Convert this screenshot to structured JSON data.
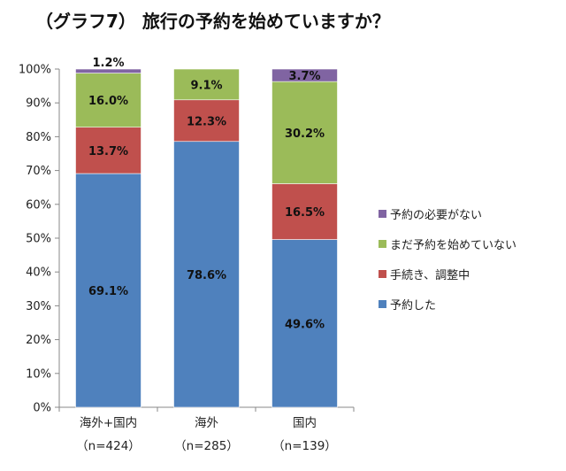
{
  "chart_data": {
    "type": "bar",
    "stacked": true,
    "title": "（グラフ7） 旅行の予約を始めていますか？",
    "categories": [
      {
        "name": "海外+国内",
        "n": "（n=424）"
      },
      {
        "name": "海外",
        "n": "（n=285）"
      },
      {
        "name": "国内",
        "n": "（n=139）"
      }
    ],
    "series": [
      {
        "name": "予約した",
        "color": "#4F81BD",
        "values": [
          69.1,
          78.6,
          49.6
        ],
        "labels": [
          "69.1%",
          "78.6%",
          "49.6%"
        ]
      },
      {
        "name": "手続き、調整中",
        "color": "#C0504D",
        "values": [
          13.7,
          12.3,
          16.5
        ],
        "labels": [
          "13.7%",
          "12.3%",
          "16.5%"
        ]
      },
      {
        "name": "まだ予約を始めていない",
        "color": "#9BBB59",
        "values": [
          16.0,
          9.1,
          30.2
        ],
        "labels": [
          "16.0%",
          "9.1%",
          "30.2%"
        ]
      },
      {
        "name": "予約の必要がない",
        "color": "#8064A2",
        "values": [
          1.2,
          0,
          3.7
        ],
        "labels": [
          "1.2%",
          "",
          "3.7%"
        ]
      }
    ],
    "ylim": [
      0,
      100
    ],
    "yticks": [
      "0%",
      "10%",
      "20%",
      "30%",
      "40%",
      "50%",
      "60%",
      "70%",
      "80%",
      "90%",
      "100%"
    ],
    "legend_order": [
      "予約の必要がない",
      "まだ予約を始めていない",
      "手続き、調整中",
      "予約した"
    ],
    "legend_position": "right",
    "grid": false
  }
}
